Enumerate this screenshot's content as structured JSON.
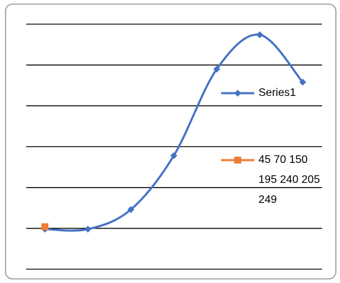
{
  "chart_data": {
    "type": "line",
    "categories": [
      null,
      null,
      null,
      null,
      null,
      null,
      null
    ],
    "series": [
      {
        "name": "Series1",
        "color": "#4472c4",
        "marker": "diamond",
        "smooth": true,
        "values": [
          49,
          49,
          73,
          139,
          245,
          287,
          229
        ]
      },
      {
        "name": "45 70 150 195 240 205 249",
        "color": "#ed7d31",
        "marker": "square",
        "values": [
          52,
          null,
          null,
          null,
          null,
          null,
          null
        ]
      }
    ],
    "ylim": [
      0,
      300
    ],
    "yticks": [
      0,
      50,
      100,
      150,
      200,
      250,
      300
    ],
    "grid": true,
    "legend": "right"
  }
}
